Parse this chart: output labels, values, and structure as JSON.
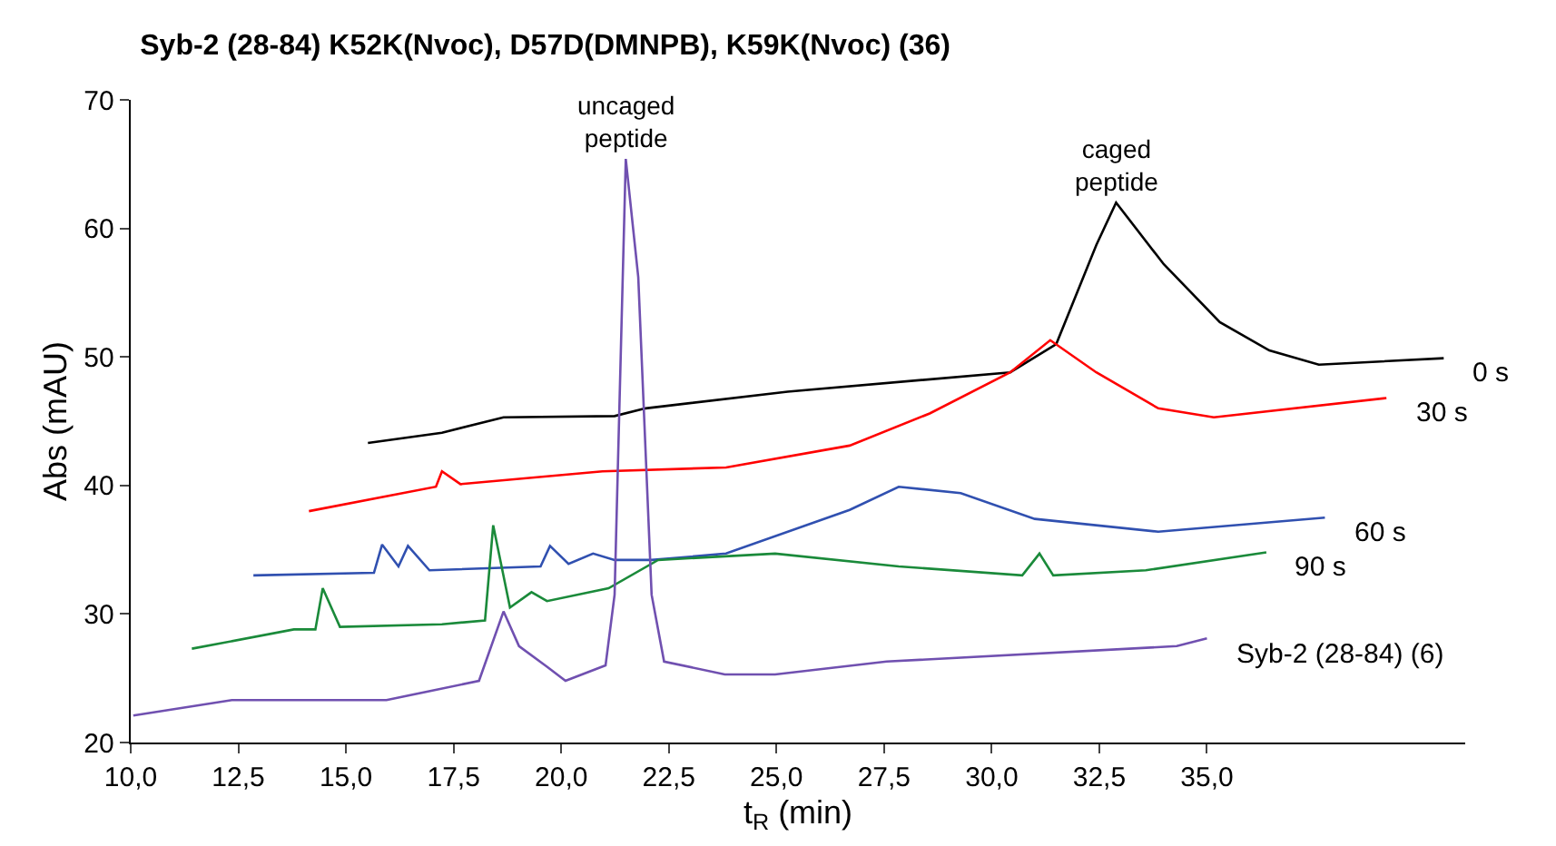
{
  "chart_data": {
    "type": "line",
    "title": "Syb-2 (28-84) K52K(Nvoc), D57D(DMNPB), K59K(Nvoc) (36)",
    "xlabel": "t$_{R}$ (min)",
    "ylabel": "Abs (mAU)",
    "xlim": [
      10,
      41
    ],
    "ylim": [
      20,
      70
    ],
    "xticks": [
      {
        "value": 10,
        "label": "10,0"
      },
      {
        "value": 12.5,
        "label": "12,5"
      },
      {
        "value": 15,
        "label": "15,0"
      },
      {
        "value": 17.5,
        "label": "17,5"
      },
      {
        "value": 20,
        "label": "20,0"
      },
      {
        "value": 22.5,
        "label": "22,5"
      },
      {
        "value": 25,
        "label": "25,0"
      },
      {
        "value": 27.5,
        "label": "27,5"
      },
      {
        "value": 30,
        "label": "30,0"
      },
      {
        "value": 32.5,
        "label": "32,5"
      },
      {
        "value": 35,
        "label": "35,0"
      }
    ],
    "yticks": [
      20,
      30,
      40,
      50,
      60,
      70
    ],
    "legend": false,
    "marker": "none",
    "line_style": "solid",
    "annotations": [
      {
        "text": "uncaged\npeptide",
        "x": 21.5,
        "y": 65.4
      },
      {
        "text": "caged\npeptide",
        "x": 32.89,
        "y": 62.0
      }
    ],
    "series": [
      {
        "name": "0 s",
        "color": "#000000",
        "x": [
          15.51,
          17.23,
          18.66,
          21.24,
          21.96,
          25.26,
          30.43,
          31.5,
          32.43,
          32.89,
          34.0,
          35.3,
          36.45,
          37.6,
          40.5
        ],
        "values": [
          43.3,
          44.1,
          45.3,
          45.4,
          46.0,
          47.3,
          48.8,
          51.0,
          58.7,
          62.0,
          57.2,
          52.7,
          50.5,
          49.4,
          49.9
        ]
      },
      {
        "name": "30 s",
        "color": "#ff0000",
        "x": [
          14.14,
          17.09,
          17.23,
          17.66,
          20.96,
          23.83,
          26.7,
          28.56,
          30.43,
          31.36,
          32.43,
          33.87,
          35.16,
          39.17
        ],
        "values": [
          38.0,
          39.9,
          41.1,
          40.1,
          41.1,
          41.4,
          43.1,
          45.6,
          48.8,
          51.3,
          48.8,
          46.0,
          45.3,
          46.8
        ]
      },
      {
        "name": "60 s",
        "color": "#3050b0",
        "x": [
          12.85,
          15.65,
          15.84,
          16.22,
          16.44,
          16.94,
          19.52,
          19.74,
          20.17,
          20.74,
          21.24,
          22.1,
          23.83,
          26.7,
          27.84,
          29.28,
          31.0,
          33.87,
          37.74
        ],
        "values": [
          33.0,
          33.2,
          35.4,
          33.7,
          35.3,
          33.4,
          33.7,
          35.3,
          33.9,
          34.7,
          34.2,
          34.2,
          34.7,
          38.1,
          39.9,
          39.4,
          37.4,
          36.4,
          37.5
        ]
      },
      {
        "name": "90 s",
        "color": "#1a8a3a",
        "x": [
          11.42,
          13.79,
          14.29,
          14.46,
          14.86,
          17.23,
          18.23,
          18.42,
          18.81,
          19.31,
          19.67,
          21.1,
          22.25,
          24.97,
          27.84,
          30.71,
          31.11,
          31.43,
          33.58,
          36.38
        ],
        "values": [
          27.3,
          28.8,
          28.8,
          32.0,
          29.0,
          29.2,
          29.5,
          36.9,
          30.5,
          31.7,
          31.0,
          32.0,
          34.2,
          34.7,
          33.7,
          33.0,
          34.7,
          33.0,
          33.4,
          34.8
        ]
      },
      {
        "name": "Syb-2 (28-84) (6)",
        "color": "#7050b0",
        "x": [
          10.06,
          12.35,
          15.94,
          18.09,
          18.66,
          19.02,
          19.67,
          20.1,
          21.03,
          21.24,
          21.5,
          21.79,
          22.1,
          22.39,
          23.8,
          24.97,
          27.56,
          34.3,
          35.0
        ],
        "values": [
          22.1,
          23.3,
          23.3,
          24.8,
          30.2,
          27.5,
          25.9,
          24.8,
          26.0,
          31.5,
          65.4,
          56.2,
          31.5,
          26.3,
          25.3,
          25.3,
          26.3,
          27.5,
          28.1
        ]
      }
    ]
  }
}
